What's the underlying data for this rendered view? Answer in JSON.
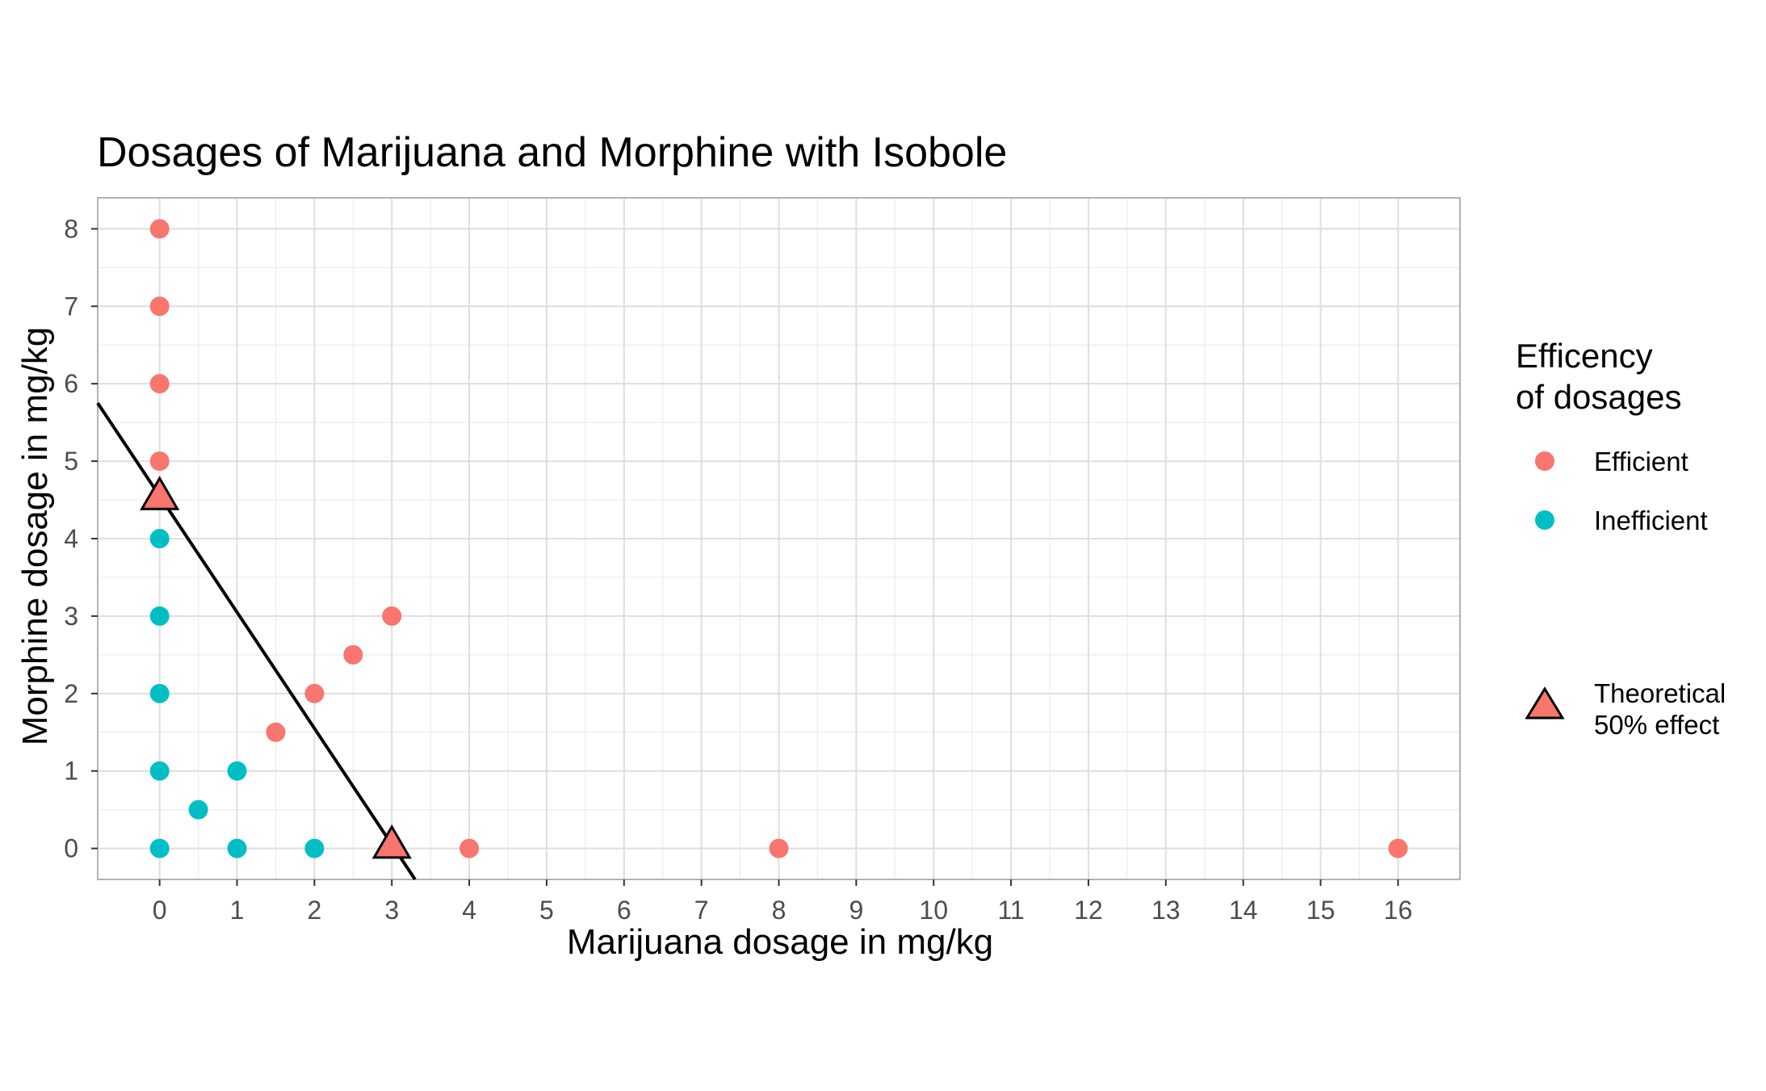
{
  "chart_data": {
    "type": "scatter",
    "title": "Dosages of Marijuana and Morphine with Isobole",
    "xlabel": "Marijuana dosage in mg/kg",
    "ylabel": "Morphine dosage in mg/kg",
    "xlim": [
      -0.8,
      16.8
    ],
    "ylim": [
      -0.4,
      8.4
    ],
    "xticks": [
      "0",
      "1",
      "2",
      "3",
      "4",
      "5",
      "6",
      "7",
      "8",
      "9",
      "10",
      "11",
      "12",
      "13",
      "14",
      "15",
      "16"
    ],
    "yticks": [
      "0",
      "1",
      "2",
      "3",
      "4",
      "5",
      "6",
      "7",
      "8"
    ],
    "grid": true,
    "legend_position": "right",
    "legend": {
      "title_lines": [
        "Efficency",
        "of dosages"
      ],
      "entries": [
        {
          "label": "Efficient",
          "color": "#F8766D",
          "shape": "circle"
        },
        {
          "label": "Inefficient",
          "color": "#00BFC4",
          "shape": "circle"
        }
      ],
      "triangle_label_lines": [
        "Theoretical",
        "50% effect"
      ]
    },
    "series": [
      {
        "name": "Efficient",
        "color": "#F8766D",
        "points": [
          [
            0,
            8
          ],
          [
            0,
            7
          ],
          [
            0,
            6
          ],
          [
            0,
            5
          ],
          [
            1.5,
            1.5
          ],
          [
            2,
            2
          ],
          [
            2.5,
            2.5
          ],
          [
            3,
            3
          ],
          [
            4,
            0
          ],
          [
            8,
            0
          ],
          [
            16,
            0
          ]
        ]
      },
      {
        "name": "Inefficient",
        "color": "#00BFC4",
        "points": [
          [
            0,
            4
          ],
          [
            0,
            3
          ],
          [
            0,
            2
          ],
          [
            0,
            1
          ],
          [
            0,
            0
          ],
          [
            0.5,
            0.5
          ],
          [
            1,
            1
          ],
          [
            1,
            0
          ],
          [
            2,
            0
          ]
        ]
      }
    ],
    "theoretical_points": [
      [
        0,
        4.55
      ],
      [
        3,
        0.05
      ]
    ],
    "theoretical_color": "#F8766D",
    "isobole": {
      "intercept": 4.55,
      "slope": -1.5,
      "color": "#000000"
    }
  }
}
